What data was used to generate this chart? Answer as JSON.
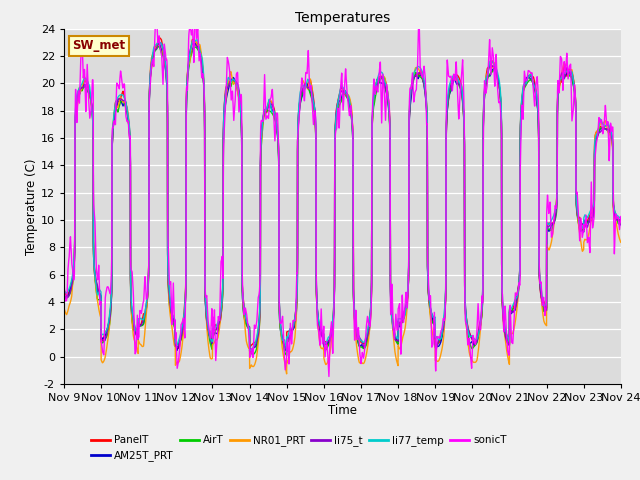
{
  "title": "Temperatures",
  "xlabel": "Time",
  "ylabel": "Temperature (C)",
  "ylim": [
    -2,
    24
  ],
  "yticks": [
    -2,
    0,
    2,
    4,
    6,
    8,
    10,
    12,
    14,
    16,
    18,
    20,
    22,
    24
  ],
  "n_days": 15,
  "x_tick_labels": [
    "Nov 9",
    "Nov 10",
    "Nov 11",
    "Nov 12",
    "Nov 13",
    "Nov 14",
    "Nov 15",
    "Nov 16",
    "Nov 17",
    "Nov 18",
    "Nov 19",
    "Nov 20",
    "Nov 21",
    "Nov 22",
    "Nov 23",
    "Nov 24"
  ],
  "series": [
    {
      "name": "PanelT",
      "color": "#ff0000",
      "lw": 1.0
    },
    {
      "name": "AM25T_PRT",
      "color": "#0000cc",
      "lw": 1.0
    },
    {
      "name": "AirT",
      "color": "#00cc00",
      "lw": 1.0
    },
    {
      "name": "NR01_PRT",
      "color": "#ff9900",
      "lw": 1.0
    },
    {
      "name": "li75_t",
      "color": "#8800cc",
      "lw": 1.0
    },
    {
      "name": "li77_temp",
      "color": "#00cccc",
      "lw": 1.0
    },
    {
      "name": "sonicT",
      "color": "#ff00ff",
      "lw": 1.0
    }
  ],
  "annotation_text": "SW_met",
  "annotation_facecolor": "#ffffcc",
  "annotation_edgecolor": "#cc8800",
  "annotation_textcolor": "#880000",
  "fig_facecolor": "#f0f0f0",
  "plot_bg_color": "#dcdcdc"
}
